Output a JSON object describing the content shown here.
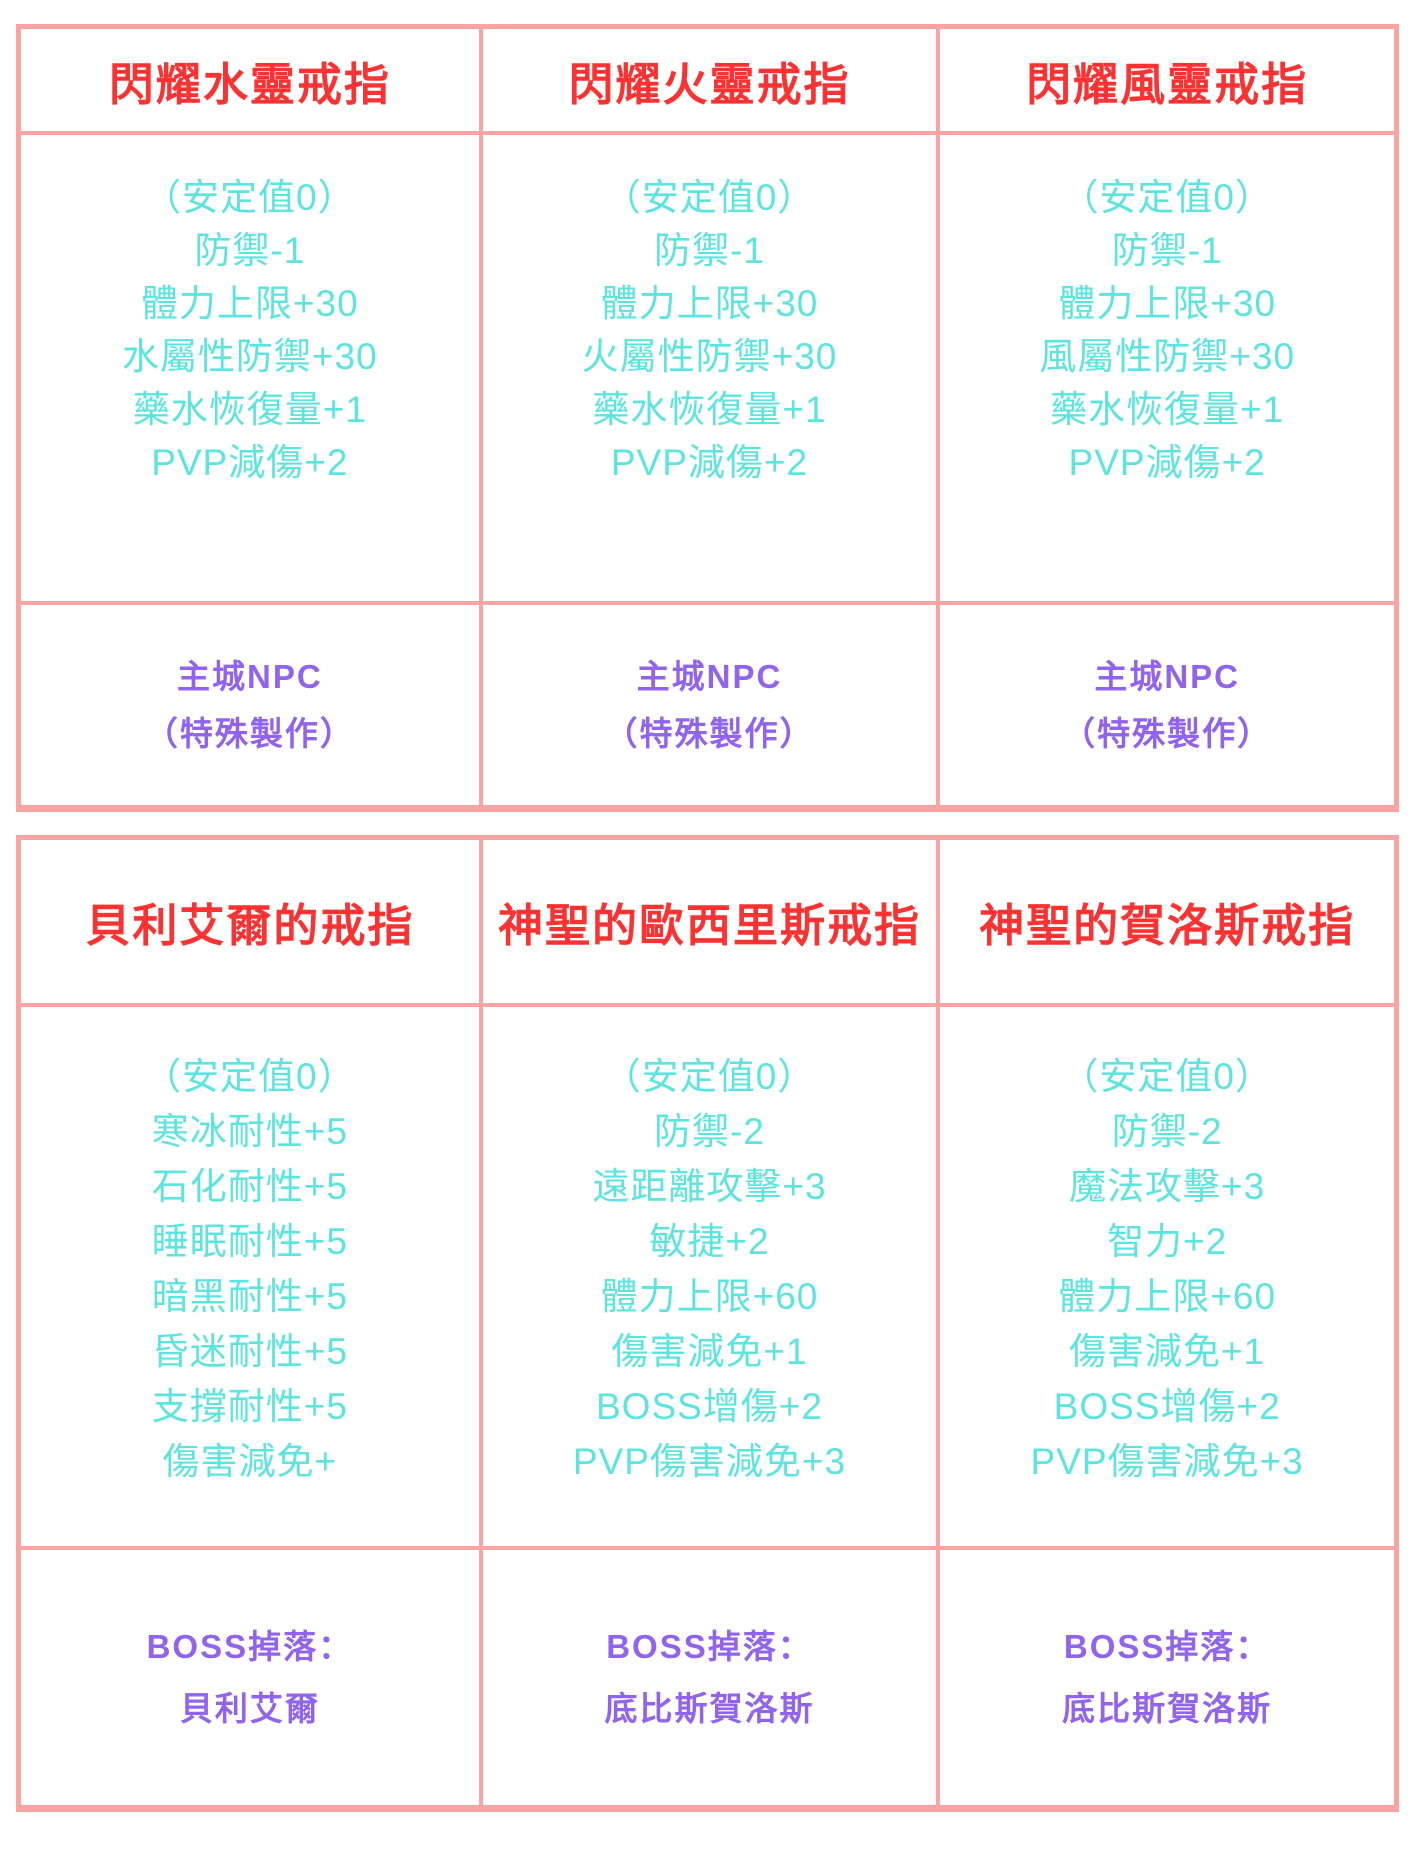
{
  "colors": {
    "border_pink": "#f9a3a3",
    "title_red": "#fb3232",
    "stat_cyan": "#5ce5df",
    "source_purple": "#9163ee"
  },
  "tables": [
    {
      "columns": [
        {
          "title": "閃耀水靈戒指",
          "stats": [
            "（安定值0）",
            "防禦-1",
            "體力上限+30",
            "水屬性防禦+30",
            "藥水恢復量+1",
            "PVP減傷+2"
          ],
          "source": [
            "主城NPC",
            "（特殊製作）"
          ]
        },
        {
          "title": "閃耀火靈戒指",
          "stats": [
            "（安定值0）",
            "防禦-1",
            "體力上限+30",
            "火屬性防禦+30",
            "藥水恢復量+1",
            "PVP減傷+2"
          ],
          "source": [
            "主城NPC",
            "（特殊製作）"
          ]
        },
        {
          "title": "閃耀風靈戒指",
          "stats": [
            "（安定值0）",
            "防禦-1",
            "體力上限+30",
            "風屬性防禦+30",
            "藥水恢復量+1",
            "PVP減傷+2"
          ],
          "source": [
            "主城NPC",
            "（特殊製作）"
          ]
        }
      ]
    },
    {
      "columns": [
        {
          "title": "貝利艾爾的戒指",
          "stats": [
            "（安定值0）",
            "寒冰耐性+5",
            "石化耐性+5",
            "睡眠耐性+5",
            "暗黑耐性+5",
            "昏迷耐性+5",
            "支撐耐性+5",
            "傷害減免+"
          ],
          "source": [
            "BOSS掉落：",
            "貝利艾爾"
          ]
        },
        {
          "title": "神聖的歐西里斯戒指",
          "stats": [
            "（安定值0）",
            "防禦-2",
            "遠距離攻擊+3",
            "敏捷+2",
            "體力上限+60",
            "傷害減免+1",
            "BOSS增傷+2",
            "PVP傷害減免+3"
          ],
          "source": [
            "BOSS掉落：",
            "底比斯賀洛斯"
          ]
        },
        {
          "title": "神聖的賀洛斯戒指",
          "stats": [
            "（安定值0）",
            "防禦-2",
            "魔法攻擊+3",
            "智力+2",
            "體力上限+60",
            "傷害減免+1",
            "BOSS增傷+2",
            "PVP傷害減免+3"
          ],
          "source": [
            "BOSS掉落：",
            "底比斯賀洛斯"
          ]
        }
      ]
    }
  ]
}
